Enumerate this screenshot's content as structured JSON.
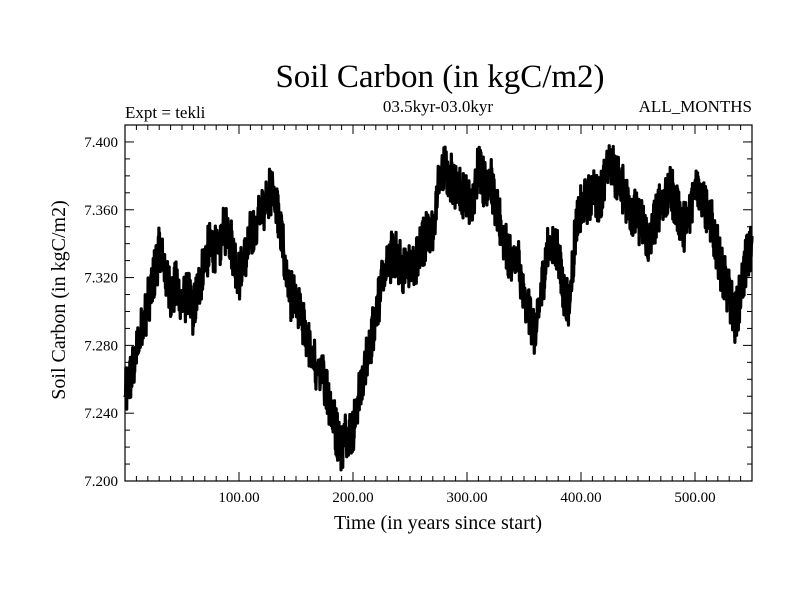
{
  "chart_data": {
    "type": "line",
    "title": "Soil Carbon (in kgC/m2)",
    "subtitle": "03.5kyr-03.0kyr",
    "left_label": "Expt = tekli",
    "right_label": "ALL_MONTHS",
    "xlabel": "Time (in years since start)",
    "ylabel": "Soil Carbon (in kgC/m2)",
    "xlim": [
      0,
      550
    ],
    "ylim": [
      7.2,
      7.41
    ],
    "x_major_ticks": [
      100,
      200,
      300,
      400,
      500
    ],
    "x_tick_labels": [
      "100.00",
      "200.00",
      "300.00",
      "400.00",
      "500.00"
    ],
    "y_major_ticks": [
      7.2,
      7.24,
      7.28,
      7.32,
      7.36,
      7.4
    ],
    "y_tick_labels": [
      "7.200",
      "7.240",
      "7.280",
      "7.320",
      "7.360",
      "7.400"
    ],
    "series": [
      {
        "name": "Soil Carbon",
        "color": "#000000",
        "x": [
          0,
          5,
          10,
          15,
          20,
          25,
          30,
          35,
          40,
          45,
          50,
          55,
          60,
          65,
          70,
          75,
          80,
          85,
          90,
          95,
          100,
          105,
          110,
          115,
          120,
          125,
          130,
          135,
          140,
          145,
          150,
          155,
          160,
          165,
          170,
          175,
          180,
          185,
          190,
          195,
          200,
          205,
          210,
          215,
          220,
          225,
          230,
          235,
          240,
          245,
          250,
          255,
          260,
          265,
          270,
          275,
          280,
          285,
          290,
          295,
          300,
          305,
          310,
          315,
          320,
          325,
          330,
          335,
          340,
          345,
          350,
          355,
          360,
          365,
          370,
          375,
          380,
          385,
          390,
          395,
          400,
          405,
          410,
          415,
          420,
          425,
          430,
          435,
          440,
          445,
          450,
          455,
          460,
          465,
          470,
          475,
          480,
          485,
          490,
          495,
          500,
          505,
          510,
          515,
          520,
          525,
          530,
          535,
          540,
          545,
          550
        ],
        "values": [
          7.25,
          7.262,
          7.275,
          7.29,
          7.305,
          7.32,
          7.335,
          7.325,
          7.31,
          7.315,
          7.305,
          7.31,
          7.3,
          7.315,
          7.33,
          7.34,
          7.335,
          7.345,
          7.35,
          7.335,
          7.32,
          7.33,
          7.345,
          7.35,
          7.36,
          7.368,
          7.372,
          7.355,
          7.33,
          7.31,
          7.305,
          7.295,
          7.285,
          7.27,
          7.265,
          7.26,
          7.245,
          7.23,
          7.22,
          7.23,
          7.23,
          7.25,
          7.265,
          7.28,
          7.3,
          7.315,
          7.325,
          7.335,
          7.33,
          7.325,
          7.325,
          7.33,
          7.34,
          7.345,
          7.345,
          7.375,
          7.385,
          7.38,
          7.375,
          7.37,
          7.365,
          7.36,
          7.39,
          7.375,
          7.38,
          7.36,
          7.35,
          7.335,
          7.33,
          7.33,
          7.305,
          7.3,
          7.285,
          7.31,
          7.335,
          7.34,
          7.335,
          7.31,
          7.305,
          7.345,
          7.36,
          7.365,
          7.37,
          7.365,
          7.375,
          7.39,
          7.38,
          7.375,
          7.365,
          7.36,
          7.355,
          7.35,
          7.34,
          7.355,
          7.365,
          7.37,
          7.37,
          7.36,
          7.35,
          7.355,
          7.38,
          7.37,
          7.36,
          7.35,
          7.335,
          7.32,
          7.31,
          7.295,
          7.31,
          7.33,
          7.34
        ]
      }
    ]
  }
}
